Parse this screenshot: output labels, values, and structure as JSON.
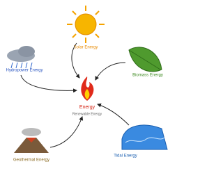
{
  "center": {
    "label": "Energy",
    "subtitle": "Renewable Energy"
  },
  "nodes": [
    {
      "label": "Solar Energy"
    },
    {
      "label": "Biomass Energy"
    },
    {
      "label": "Hydropower Energy"
    },
    {
      "label": "Geothermal Energy"
    },
    {
      "label": "Tidal Energy"
    }
  ]
}
